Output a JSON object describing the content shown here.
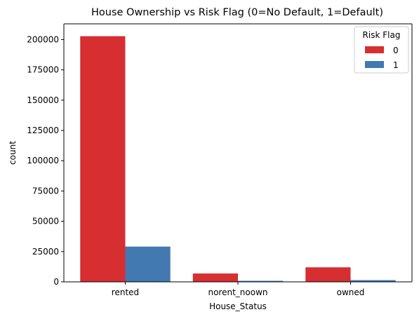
{
  "chart_data": {
    "type": "bar",
    "title": "House Ownership vs Risk Flag (0=No Default, 1=Default)",
    "xlabel": "House_Status",
    "ylabel": "count",
    "categories": [
      "rented",
      "norent_noown",
      "owned"
    ],
    "series": [
      {
        "name": "0",
        "color": "#d62e31",
        "values": [
          202800,
          6900,
          12000
        ]
      },
      {
        "name": "1",
        "color": "#4279b0",
        "values": [
          29100,
          850,
          1400
        ]
      }
    ],
    "ylim": [
      0,
      213000
    ],
    "yticks": [
      0,
      25000,
      50000,
      75000,
      100000,
      125000,
      150000,
      175000,
      200000
    ],
    "legend": {
      "title": "Risk Flag",
      "placement": "top-right"
    },
    "grid": false
  }
}
